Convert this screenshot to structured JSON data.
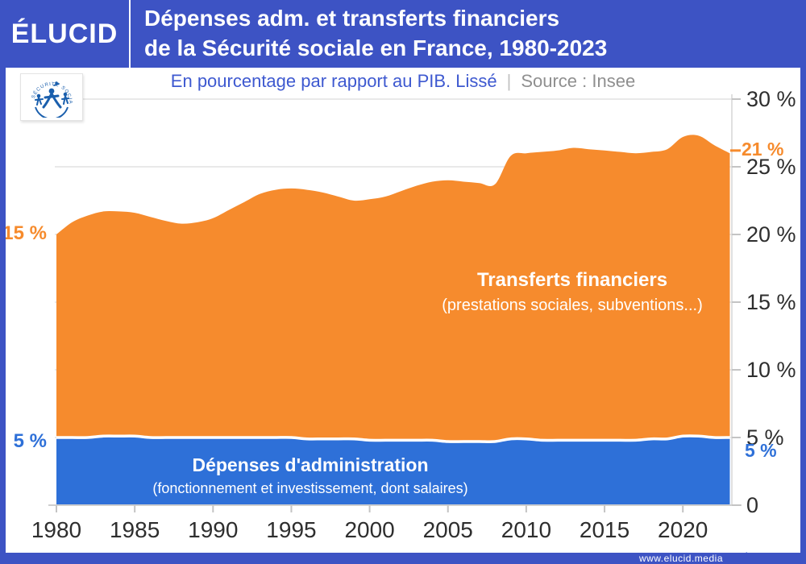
{
  "header": {
    "brand": "ÉLUCID",
    "title_line1": "Dépenses adm. et transferts financiers",
    "title_line2": "de la Sécurité sociale en France, 1980-2023"
  },
  "subtitle": {
    "description": "En pourcentage par rapport au PIB. Lissé",
    "separator": "|",
    "source": "Source : Insee"
  },
  "logo": {
    "text": "SÉCURITÉ SOCIALE"
  },
  "footer": {
    "url": "www.elucid.media"
  },
  "colors": {
    "frame_blue": "#3D53C4",
    "admin_blue": "#2E70D8",
    "transfers_orange": "#F68B2D",
    "gridline": "#DCDCDC",
    "axis_line": "#CFCFCF",
    "tick": "#C4C4C4"
  },
  "chart_data": {
    "type": "area",
    "stacked": true,
    "title": "Dépenses adm. et transferts financiers de la Sécurité sociale en France, 1980-2023",
    "subtitle": "En pourcentage par rapport au PIB. Lissé",
    "source": "Insee",
    "ylabel": "% du PIB",
    "ylim": [
      0,
      30
    ],
    "grid": true,
    "x": [
      1980,
      1981,
      1982,
      1983,
      1984,
      1985,
      1986,
      1987,
      1988,
      1989,
      1990,
      1991,
      1992,
      1993,
      1994,
      1995,
      1996,
      1997,
      1998,
      1999,
      2000,
      2001,
      2002,
      2003,
      2004,
      2005,
      2006,
      2007,
      2008,
      2009,
      2010,
      2011,
      2012,
      2013,
      2014,
      2015,
      2016,
      2017,
      2018,
      2019,
      2020,
      2021,
      2022,
      2023
    ],
    "series": [
      {
        "name": "Dépenses d'administration",
        "sublabel": "(fonctionnement et investissement, dont salaires)",
        "color": "#2E70D8",
        "values": [
          5.0,
          5.0,
          5.0,
          5.1,
          5.1,
          5.1,
          5.0,
          5.0,
          5.0,
          5.0,
          5.0,
          5.0,
          5.0,
          5.0,
          5.0,
          5.0,
          4.9,
          4.9,
          4.9,
          4.9,
          4.8,
          4.8,
          4.8,
          4.8,
          4.8,
          4.7,
          4.7,
          4.7,
          4.7,
          4.9,
          4.9,
          4.8,
          4.8,
          4.8,
          4.8,
          4.8,
          4.8,
          4.8,
          4.9,
          4.9,
          5.1,
          5.1,
          5.0,
          5.0
        ]
      },
      {
        "name": "Transferts financiers",
        "sublabel": "(prestations sociales, subventions...)",
        "color": "#F68B2D",
        "values": [
          15.0,
          15.9,
          16.4,
          16.6,
          16.6,
          16.5,
          16.3,
          16.0,
          15.8,
          15.9,
          16.2,
          16.8,
          17.4,
          18.0,
          18.3,
          18.4,
          18.4,
          18.2,
          17.9,
          17.6,
          17.8,
          18.0,
          18.4,
          18.8,
          19.1,
          19.3,
          19.2,
          19.1,
          19.0,
          20.9,
          21.1,
          21.3,
          21.4,
          21.6,
          21.5,
          21.4,
          21.3,
          21.2,
          21.2,
          21.4,
          22.1,
          22.2,
          21.6,
          21.0
        ]
      }
    ],
    "y_ticks": [
      {
        "value": 30,
        "label": "30 %"
      },
      {
        "value": 25,
        "label": "25 %"
      },
      {
        "value": 20,
        "label": "20 %"
      },
      {
        "value": 15,
        "label": "15 %"
      },
      {
        "value": 10,
        "label": "10 %"
      },
      {
        "value": 5,
        "label": "5 %"
      },
      {
        "value": 0,
        "label": "0"
      }
    ],
    "x_ticks": [
      {
        "value": 1980,
        "label": "1980"
      },
      {
        "value": 1985,
        "label": "1985"
      },
      {
        "value": 1990,
        "label": "1990"
      },
      {
        "value": 1995,
        "label": "1995"
      },
      {
        "value": 2000,
        "label": "2000"
      },
      {
        "value": 2005,
        "label": "2005"
      },
      {
        "value": 2010,
        "label": "2010"
      },
      {
        "value": 2015,
        "label": "2015"
      },
      {
        "value": 2020,
        "label": "2020"
      }
    ],
    "annotations": {
      "left_transfers": {
        "text": "15 %",
        "series": "Transferts financiers",
        "year": 1980
      },
      "left_admin": {
        "text": "5 %",
        "series": "Dépenses d'administration",
        "year": 1980
      },
      "right_transfers": {
        "text": "21 %",
        "series": "Transferts financiers",
        "year": 2023
      },
      "right_admin": {
        "text": "5 %",
        "series": "Dépenses d'administration",
        "year": 2023
      }
    }
  }
}
